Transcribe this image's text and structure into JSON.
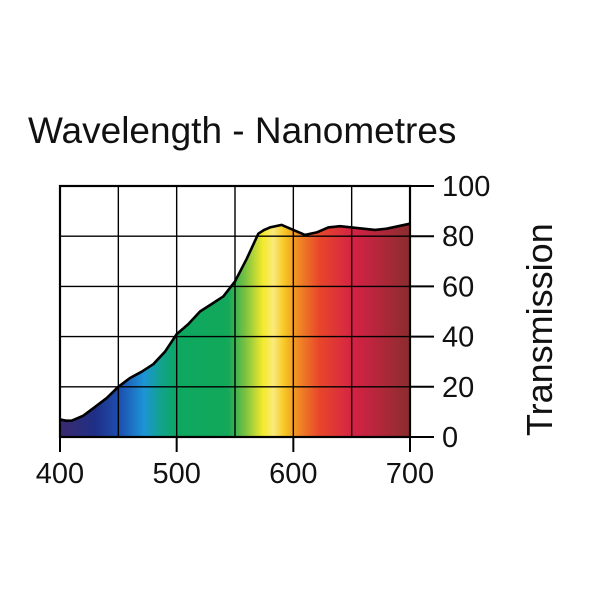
{
  "chart_data": {
    "type": "area",
    "title": "Wavelength - Nanometres",
    "xlabel": "",
    "ylabel": "Transmission",
    "xlim": [
      400,
      700
    ],
    "ylim": [
      0,
      100
    ],
    "x_ticks": [
      400,
      500,
      600,
      700
    ],
    "y_ticks": [
      0,
      20,
      40,
      60,
      80,
      100
    ],
    "grid": true,
    "y_axis_side": "right",
    "fill": "visible spectrum gradient",
    "series": [
      {
        "x": [
          400,
          405,
          410,
          420,
          430,
          440,
          450,
          460,
          470,
          480,
          490,
          500,
          510,
          520,
          530,
          540,
          550,
          560,
          570,
          575,
          580,
          590,
          600,
          610,
          620,
          630,
          640,
          650,
          660,
          670,
          680,
          690,
          700
        ],
        "y": [
          7,
          6.5,
          6.5,
          8.5,
          12,
          15.5,
          20,
          23.5,
          26,
          29,
          34,
          41,
          45,
          50,
          53,
          56,
          62,
          71,
          81,
          82.5,
          83.5,
          84.5,
          82.5,
          80.5,
          81.5,
          83.5,
          84,
          83.5,
          83,
          82.5,
          83,
          84,
          85
        ]
      }
    ]
  }
}
